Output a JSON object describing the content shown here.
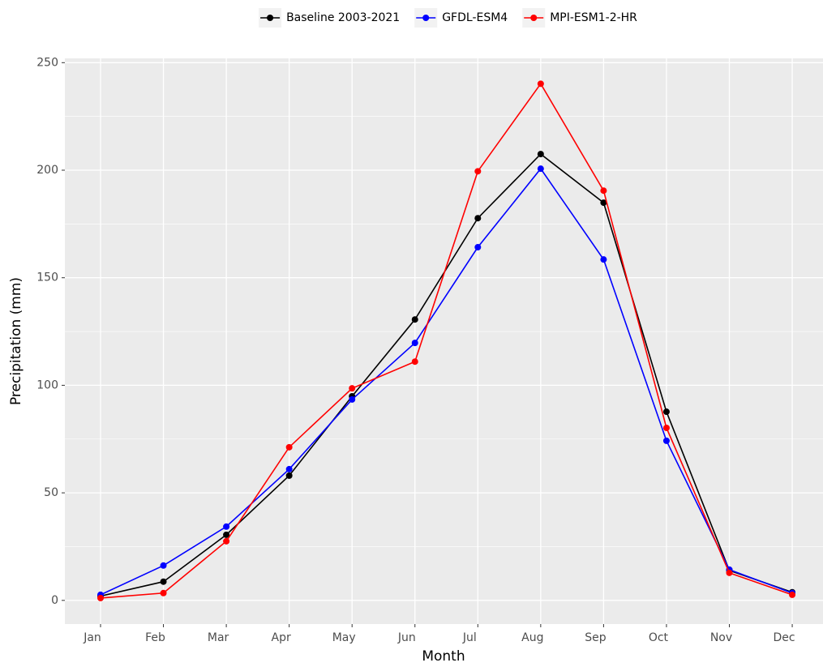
{
  "chart_data": {
    "type": "line",
    "xlabel": "Month",
    "ylabel": "Precipitation (mm)",
    "categories": [
      "Jan",
      "Feb",
      "Mar",
      "Apr",
      "May",
      "Jun",
      "Jul",
      "Aug",
      "Sep",
      "Oct",
      "Nov",
      "Dec"
    ],
    "series": [
      {
        "name": "Baseline 2003-2021",
        "color": "#000000",
        "values": [
          2,
          8.7,
          30.5,
          58,
          94.9,
          130.6,
          177.7,
          207.5,
          184.9,
          87.7,
          13.9,
          3.8
        ]
      },
      {
        "name": "GFDL-ESM4",
        "color": "#0000ff",
        "values": [
          2.6,
          16.2,
          34.3,
          61,
          93.4,
          119.7,
          164.2,
          200.7,
          158.5,
          74.2,
          14.3,
          3.4
        ]
      },
      {
        "name": "MPI-ESM1-2-HR",
        "color": "#ff0000",
        "values": [
          1.1,
          3.4,
          27.5,
          71.2,
          98.6,
          111,
          199.5,
          240.2,
          190.5,
          80.2,
          12.8,
          2.6
        ]
      }
    ],
    "ylim": [
      -11,
      252
    ],
    "yticks": [
      0,
      50,
      100,
      150,
      200,
      250
    ],
    "grid": true,
    "legend": "top"
  }
}
